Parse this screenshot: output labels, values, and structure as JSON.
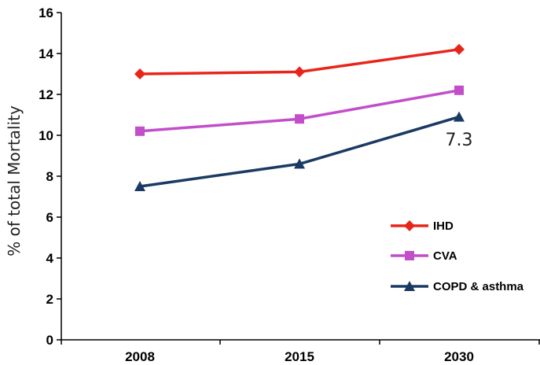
{
  "chart_data": {
    "type": "line",
    "title": "",
    "xlabel": "",
    "ylabel": "% of total Mortality",
    "categories": [
      "2008",
      "2015",
      "2030"
    ],
    "ylim": [
      0,
      16
    ],
    "yticks": [
      0,
      2,
      4,
      6,
      8,
      10,
      12,
      14,
      16
    ],
    "series": [
      {
        "name": "IHD",
        "values": [
          13.0,
          13.1,
          14.2
        ],
        "color": "#e8251b",
        "marker": "diamond"
      },
      {
        "name": "CVA",
        "values": [
          10.2,
          10.8,
          12.2
        ],
        "color": "#c24fc9",
        "marker": "square"
      },
      {
        "name": "COPD & asthma",
        "values": [
          7.5,
          8.6,
          10.9
        ],
        "color": "#1b3a63",
        "marker": "triangle"
      }
    ],
    "annotations": [
      {
        "text": "7.3",
        "category": "2030",
        "y": 9.5
      }
    ],
    "legend": {
      "position": "right"
    },
    "grid": false
  }
}
